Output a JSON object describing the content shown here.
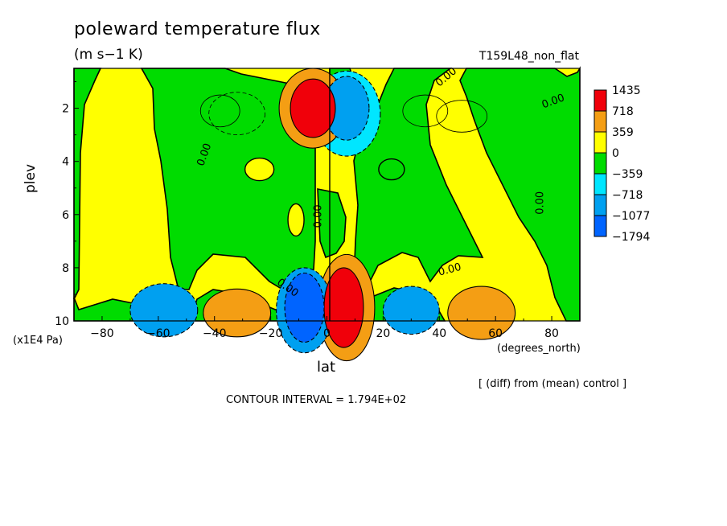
{
  "header": {
    "title": "poleward temperature flux",
    "units": "(m s−1 K)",
    "experiment": "T159L48_non_flat"
  },
  "footer": {
    "contour_interval": "CONTOUR INTERVAL = 1.794E+02",
    "comparison_note": "[ (diff) from (mean) control ]"
  },
  "chart_data": {
    "type": "heatmap",
    "title": "poleward temperature flux",
    "subtitle": "(m s−1 K)",
    "xlabel": "lat",
    "xunit": "(degrees_north)",
    "ylabel": "plev",
    "yunit": "(x1E4 Pa)",
    "xlim": [
      -90,
      90
    ],
    "ylim": [
      10,
      0.5
    ],
    "x_ticks": [
      -80,
      -60,
      -40,
      -20,
      0,
      20,
      40,
      60,
      80
    ],
    "x_tick_labels": [
      "−80",
      "−60",
      "−40",
      "−20",
      "0",
      "20",
      "40",
      "60",
      "80"
    ],
    "y_ticks": [
      2,
      4,
      6,
      8,
      10
    ],
    "contour_labels": [
      "0.00"
    ],
    "colorbar": {
      "levels": [
        {
          "label": "1435",
          "color": "#f0000a"
        },
        {
          "label": "718",
          "color": "#f49e14"
        },
        {
          "label": "359",
          "color": "#ffff00"
        },
        {
          "label": "0",
          "color": "#00dc00"
        },
        {
          "label": "−359",
          "color": "#00e6ff"
        },
        {
          "label": "−718",
          "color": "#00a0f0"
        },
        {
          "label": "−1077",
          "color": "#0064ff"
        },
        {
          "label": "−1794",
          "color": "#0064ff"
        }
      ]
    },
    "background_sign": {
      "positive_color": "#ffff00",
      "negative_color": "#00dc00"
    },
    "features": [
      {
        "lon": -5,
        "plev": 2.0,
        "rx": 8,
        "ry": 1.1,
        "level": 1435
      },
      {
        "lon": -5,
        "plev": 2.0,
        "rx": 12,
        "ry": 1.5,
        "level": 718
      },
      {
        "lon": 7,
        "plev": 2.0,
        "rx": 8,
        "ry": 1.2,
        "level": -718
      },
      {
        "lon": 7,
        "plev": 2.2,
        "rx": 12,
        "ry": 1.6,
        "level": -359
      },
      {
        "lon": 6,
        "plev": 9.5,
        "rx": 7,
        "ry": 1.5,
        "level": 1435
      },
      {
        "lon": 7,
        "plev": 9.5,
        "rx": 10,
        "ry": 2.0,
        "level": 718
      },
      {
        "lon": -8,
        "plev": 9.5,
        "rx": 7,
        "ry": 1.3,
        "level": -1077
      },
      {
        "lon": -8,
        "plev": 9.6,
        "rx": 10,
        "ry": 1.6,
        "level": -718
      },
      {
        "lon": -32,
        "plev": 9.7,
        "rx": 12,
        "ry": 0.9,
        "level": 718
      },
      {
        "lon": 55,
        "plev": 9.7,
        "rx": 12,
        "ry": 1.0,
        "level": 718
      },
      {
        "lon": -58,
        "plev": 9.6,
        "rx": 12,
        "ry": 1.0,
        "level": -718
      },
      {
        "lon": 30,
        "plev": 9.6,
        "rx": 10,
        "ry": 0.9,
        "level": -718
      }
    ]
  }
}
